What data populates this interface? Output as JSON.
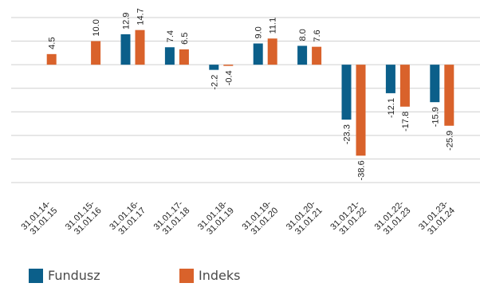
{
  "chart_data": {
    "type": "bar",
    "categories": [
      [
        "31.01.14-",
        "31.01.15"
      ],
      [
        "31.01.15-",
        "31.01.16"
      ],
      [
        "31.01.16-",
        "31.01.17"
      ],
      [
        "31.01.17-",
        "31.01.18"
      ],
      [
        "31.01.18-",
        "31.01.19"
      ],
      [
        "31.01.19-",
        "31.01.20"
      ],
      [
        "31.01.20-",
        "31.01.21"
      ],
      [
        "31.01.21-",
        "31.01.22"
      ],
      [
        "31.01.22-",
        "31.01.23"
      ],
      [
        "31.01.23-",
        "31.01.24"
      ]
    ],
    "series": [
      {
        "name": "Fundusz",
        "color": "#0b5f8a",
        "values": [
          null,
          null,
          12.9,
          7.4,
          -2.2,
          9.0,
          8.0,
          -23.3,
          -12.1,
          -15.9
        ],
        "labels": [
          "",
          "",
          "12.9",
          "7.4",
          "-2.2",
          "9.0",
          "8.0",
          "-23.3",
          "-12.1",
          "-15.9"
        ]
      },
      {
        "name": "Indeks",
        "color": "#d9622b",
        "values": [
          4.5,
          10.0,
          14.7,
          6.5,
          -0.4,
          11.1,
          7.6,
          -38.6,
          -17.8,
          -25.9
        ],
        "labels": [
          "4.5",
          "10.0",
          "14.7",
          "6.5",
          "-0.4",
          "11.1",
          "7.6",
          "-38.6",
          "-17.8",
          "-25.9"
        ]
      }
    ],
    "ylim": [
      -50,
      20
    ],
    "gridlines": [
      20,
      10,
      0,
      -10,
      -20,
      -30,
      -40,
      -50
    ],
    "grid": true,
    "legend_position": "bottom-left"
  },
  "legend": [
    {
      "label": "Fundusz",
      "color": "#0b5f8a"
    },
    {
      "label": "Indeks",
      "color": "#d9622b"
    }
  ]
}
